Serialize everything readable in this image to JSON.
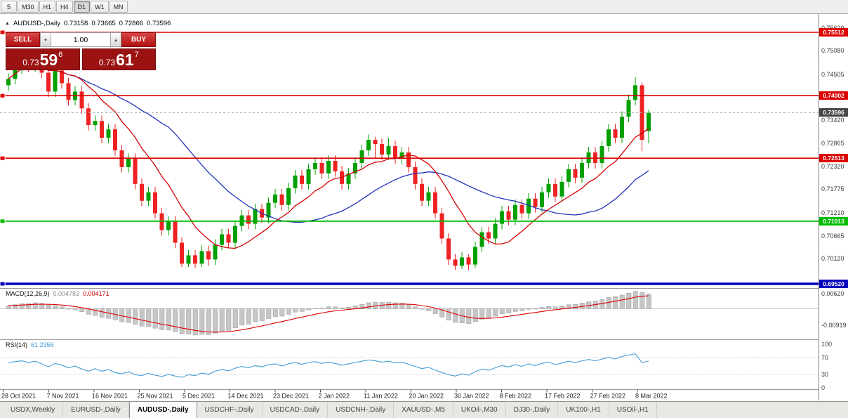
{
  "colors": {
    "up": "#00a000",
    "down": "#ee2222",
    "ma_fast": "#d40000",
    "ma_slow": "#2233bb",
    "macd_bar": "#c6c6c6",
    "macd_bar_edge": "#9a9a9a",
    "macd_signal": "#dd0000",
    "rsi_line": "#3f9cd8",
    "badge_current": "#454545",
    "bid_line": "#aaaaaa"
  },
  "toolbar": {
    "timeframes": [
      {
        "label": "5",
        "active": false
      },
      {
        "label": "M30",
        "active": false
      },
      {
        "label": "H1",
        "active": false
      },
      {
        "label": "H4",
        "active": false
      },
      {
        "label": "D1",
        "active": true
      },
      {
        "label": "W1",
        "active": false
      },
      {
        "label": "MN",
        "active": false
      }
    ]
  },
  "chart_header": {
    "collapse_icon": "▲",
    "symbol": "AUDUSD-,Daily",
    "open": "0.73158",
    "high": "0.73665",
    "low": "0.72866",
    "close": "0.73596"
  },
  "trade_panel": {
    "sell_label": "SELL",
    "buy_label": "BUY",
    "volume": "1.00",
    "volume_down_icon": "▾",
    "volume_up_icon": "▴",
    "sell_price": {
      "base": "0.73",
      "big": "59",
      "sup": "6"
    },
    "buy_price": {
      "base": "0.73",
      "big": "61",
      "sup": "7"
    }
  },
  "levels": [
    {
      "value": 0.75512,
      "label": "0.75512",
      "color": "#dd0000",
      "width": 1.6
    },
    {
      "value": 0.74002,
      "label": "0.74002",
      "color": "#dd0000",
      "width": 1.6
    },
    {
      "value": 0.72513,
      "label": "0.72513",
      "color": "#dd0000",
      "width": 1.6
    },
    {
      "value": 0.71013,
      "label": "0.71013",
      "color": "#00bb00",
      "width": 1.8
    },
    {
      "value": 0.6952,
      "label": "0.69520",
      "color": "#0000bb",
      "width": 3.5
    }
  ],
  "current_price": {
    "value": 0.73596,
    "label": "0.73596"
  },
  "price_axis_ticks": [
    0.7562,
    0.7508,
    0.74505,
    0.7342,
    0.72865,
    0.7232,
    0.71775,
    0.7121,
    0.70665,
    0.7012
  ],
  "macd_panel": {
    "name": "MACD(12,26,9)",
    "value1": "0.004783",
    "value2": "0.004171",
    "axis_max": "0.00620",
    "axis_min": "-0.00919"
  },
  "rsi_panel": {
    "name": "RSI(14)",
    "value": "61.2356",
    "levels": [
      100,
      70,
      30,
      0
    ]
  },
  "date_axis": [
    "28 Oct 2021",
    "7 Nov 2021",
    "16 Nov 2021",
    "25 Nov 2021",
    "5 Dec 2021",
    "14 Dec 2021",
    "23 Dec 2021",
    "2 Jan 2022",
    "11 Jan 2022",
    "20 Jan 2022",
    "30 Jan 2022",
    "8 Feb 2022",
    "17 Feb 2022",
    "27 Feb 2022",
    "8 Mar 2022"
  ],
  "tabs": [
    {
      "label": "USDX,Weekly",
      "active": false
    },
    {
      "label": "EURUSD-,Daily",
      "active": false
    },
    {
      "label": "AUDUSD-,Daily",
      "active": true
    },
    {
      "label": "USDCHF-,Daily",
      "active": false
    },
    {
      "label": "USDCAD-,Daily",
      "active": false
    },
    {
      "label": "USDCNH-,Daily",
      "active": false
    },
    {
      "label": "XAUUSD-,M5",
      "active": false
    },
    {
      "label": "UKOil-,M30",
      "active": false
    },
    {
      "label": "DJ30-,Daily",
      "active": false
    },
    {
      "label": "UK100-,H1",
      "active": false
    },
    {
      "label": "USOil-,H1",
      "active": false
    }
  ],
  "chart_data": {
    "type": "candlestick",
    "symbol": "AUDUSD",
    "timeframe": "Daily",
    "candles": [
      [
        0.7425,
        0.7453,
        0.7412,
        0.744
      ],
      [
        0.744,
        0.7478,
        0.7427,
        0.7465
      ],
      [
        0.7465,
        0.7505,
        0.7452,
        0.7488
      ],
      [
        0.7488,
        0.7501,
        0.7457,
        0.747
      ],
      [
        0.747,
        0.7512,
        0.7457,
        0.7495
      ],
      [
        0.7495,
        0.7508,
        0.7442,
        0.7455
      ],
      [
        0.7455,
        0.7468,
        0.7397,
        0.741
      ],
      [
        0.741,
        0.7473,
        0.7397,
        0.746
      ],
      [
        0.746,
        0.7473,
        0.7417,
        0.743
      ],
      [
        0.743,
        0.7443,
        0.7377,
        0.739
      ],
      [
        0.739,
        0.7423,
        0.7377,
        0.741
      ],
      [
        0.741,
        0.7423,
        0.7357,
        0.737
      ],
      [
        0.737,
        0.7383,
        0.7317,
        0.733
      ],
      [
        0.733,
        0.7353,
        0.7317,
        0.734
      ],
      [
        0.734,
        0.7353,
        0.7287,
        0.73
      ],
      [
        0.73,
        0.7333,
        0.7287,
        0.732
      ],
      [
        0.732,
        0.7333,
        0.7257,
        0.727
      ],
      [
        0.727,
        0.7283,
        0.7217,
        0.723
      ],
      [
        0.723,
        0.7263,
        0.7217,
        0.725
      ],
      [
        0.725,
        0.7263,
        0.7177,
        0.719
      ],
      [
        0.719,
        0.7203,
        0.7137,
        0.715
      ],
      [
        0.715,
        0.7183,
        0.7137,
        0.717
      ],
      [
        0.717,
        0.7183,
        0.7107,
        0.712
      ],
      [
        0.712,
        0.7133,
        0.7067,
        0.708
      ],
      [
        0.708,
        0.7113,
        0.7067,
        0.71
      ],
      [
        0.71,
        0.7113,
        0.7037,
        0.705
      ],
      [
        0.705,
        0.7063,
        0.6992,
        0.7
      ],
      [
        0.7,
        0.7033,
        0.6992,
        0.702
      ],
      [
        0.702,
        0.7033,
        0.699,
        0.7
      ],
      [
        0.7,
        0.7043,
        0.6992,
        0.703
      ],
      [
        0.703,
        0.7043,
        0.6995,
        0.701
      ],
      [
        0.701,
        0.7058,
        0.6997,
        0.7045
      ],
      [
        0.7045,
        0.7083,
        0.7032,
        0.707
      ],
      [
        0.707,
        0.7083,
        0.7037,
        0.705
      ],
      [
        0.705,
        0.7103,
        0.7037,
        0.709
      ],
      [
        0.709,
        0.7128,
        0.7077,
        0.7115
      ],
      [
        0.7115,
        0.7128,
        0.7082,
        0.7095
      ],
      [
        0.7095,
        0.7143,
        0.7082,
        0.713
      ],
      [
        0.713,
        0.7143,
        0.7097,
        0.711
      ],
      [
        0.711,
        0.7158,
        0.7097,
        0.7145
      ],
      [
        0.7145,
        0.7178,
        0.7132,
        0.7165
      ],
      [
        0.7165,
        0.7178,
        0.7127,
        0.714
      ],
      [
        0.714,
        0.7193,
        0.7127,
        0.718
      ],
      [
        0.718,
        0.7223,
        0.7167,
        0.721
      ],
      [
        0.721,
        0.7223,
        0.7177,
        0.719
      ],
      [
        0.719,
        0.7238,
        0.7177,
        0.7225
      ],
      [
        0.7225,
        0.7253,
        0.7212,
        0.724
      ],
      [
        0.724,
        0.7253,
        0.7202,
        0.7215
      ],
      [
        0.7215,
        0.7258,
        0.7202,
        0.7245
      ],
      [
        0.7245,
        0.7258,
        0.7207,
        0.722
      ],
      [
        0.722,
        0.7233,
        0.7177,
        0.719
      ],
      [
        0.719,
        0.7228,
        0.7177,
        0.7215
      ],
      [
        0.7215,
        0.7253,
        0.7202,
        0.724
      ],
      [
        0.724,
        0.7283,
        0.7227,
        0.727
      ],
      [
        0.727,
        0.7308,
        0.7257,
        0.7295
      ],
      [
        0.7295,
        0.7302,
        0.725,
        0.7285
      ],
      [
        0.7285,
        0.7298,
        0.7247,
        0.726
      ],
      [
        0.726,
        0.73,
        0.7247,
        0.728
      ],
      [
        0.728,
        0.7293,
        0.7237,
        0.725
      ],
      [
        0.725,
        0.7278,
        0.7237,
        0.7265
      ],
      [
        0.7265,
        0.7278,
        0.7217,
        0.723
      ],
      [
        0.723,
        0.7243,
        0.7177,
        0.719
      ],
      [
        0.719,
        0.7203,
        0.7137,
        0.715
      ],
      [
        0.715,
        0.7183,
        0.7137,
        0.717
      ],
      [
        0.717,
        0.7183,
        0.7107,
        0.712
      ],
      [
        0.712,
        0.7133,
        0.7047,
        0.706
      ],
      [
        0.706,
        0.7073,
        0.6997,
        0.701
      ],
      [
        0.701,
        0.7023,
        0.6985,
        0.6995
      ],
      [
        0.6995,
        0.7028,
        0.6988,
        0.7015
      ],
      [
        0.7015,
        0.7022,
        0.6985,
        0.6998
      ],
      [
        0.6998,
        0.7053,
        0.699,
        0.704
      ],
      [
        0.704,
        0.7088,
        0.7027,
        0.7075
      ],
      [
        0.7075,
        0.7088,
        0.7047,
        0.706
      ],
      [
        0.706,
        0.7108,
        0.7047,
        0.7095
      ],
      [
        0.7095,
        0.7138,
        0.7082,
        0.7125
      ],
      [
        0.7125,
        0.7138,
        0.7092,
        0.7105
      ],
      [
        0.7105,
        0.7153,
        0.7092,
        0.714
      ],
      [
        0.714,
        0.7153,
        0.7107,
        0.712
      ],
      [
        0.712,
        0.7168,
        0.7107,
        0.7155
      ],
      [
        0.7155,
        0.7168,
        0.7122,
        0.7135
      ],
      [
        0.7135,
        0.7183,
        0.7122,
        0.717
      ],
      [
        0.717,
        0.7203,
        0.7157,
        0.719
      ],
      [
        0.719,
        0.7203,
        0.7147,
        0.716
      ],
      [
        0.716,
        0.7208,
        0.7147,
        0.7195
      ],
      [
        0.7195,
        0.7238,
        0.7182,
        0.7225
      ],
      [
        0.7225,
        0.7238,
        0.7192,
        0.7205
      ],
      [
        0.7205,
        0.7253,
        0.7192,
        0.724
      ],
      [
        0.724,
        0.7278,
        0.7227,
        0.7265
      ],
      [
        0.7265,
        0.7278,
        0.7227,
        0.724
      ],
      [
        0.724,
        0.7293,
        0.7227,
        0.728
      ],
      [
        0.728,
        0.7333,
        0.7267,
        0.732
      ],
      [
        0.732,
        0.7333,
        0.7287,
        0.73
      ],
      [
        0.73,
        0.7363,
        0.7287,
        0.735
      ],
      [
        0.735,
        0.7403,
        0.7337,
        0.739
      ],
      [
        0.739,
        0.7445,
        0.7377,
        0.7425
      ],
      [
        0.7425,
        0.7432,
        0.7268,
        0.7295
      ],
      [
        0.73158,
        0.73665,
        0.72866,
        0.73596
      ]
    ],
    "macd": [
      0.001,
      0.0013,
      0.0016,
      0.0017,
      0.0019,
      0.0017,
      0.0012,
      0.001,
      0.0006,
      0.0,
      -0.0004,
      -0.001,
      -0.0018,
      -0.0022,
      -0.0028,
      -0.0031,
      -0.0036,
      -0.0042,
      -0.0045,
      -0.005,
      -0.0056,
      -0.0058,
      -0.0063,
      -0.0068,
      -0.0069,
      -0.0074,
      -0.008,
      -0.0082,
      -0.0085,
      -0.0083,
      -0.0084,
      -0.0079,
      -0.0072,
      -0.007,
      -0.0062,
      -0.0053,
      -0.005,
      -0.0042,
      -0.0039,
      -0.0032,
      -0.0026,
      -0.0024,
      -0.0018,
      -0.0011,
      -0.0009,
      -0.0004,
      0.0001,
      0.0002,
      0.0006,
      0.0006,
      0.0003,
      0.0005,
      0.0009,
      0.0014,
      0.0019,
      0.0021,
      0.002,
      0.0021,
      0.0019,
      0.0018,
      0.0013,
      0.0006,
      -0.0002,
      -0.0007,
      -0.0016,
      -0.0027,
      -0.0037,
      -0.0044,
      -0.0046,
      -0.0048,
      -0.0042,
      -0.0034,
      -0.003,
      -0.0024,
      -0.0017,
      -0.0014,
      -0.0009,
      -0.0007,
      -0.0002,
      0.0,
      0.0004,
      0.0007,
      0.0006,
      0.0009,
      0.0013,
      0.0014,
      0.0018,
      0.0022,
      0.0025,
      0.003,
      0.0036,
      0.0039,
      0.0044,
      0.005,
      0.0056,
      0.0052,
      0.004783
    ],
    "rsi": [
      58,
      60,
      62,
      58,
      61,
      55,
      48,
      56,
      52,
      46,
      50,
      43,
      38,
      44,
      38,
      42,
      35,
      32,
      37,
      30,
      28,
      33,
      29,
      26,
      31,
      27,
      24,
      30,
      28,
      34,
      31,
      38,
      42,
      39,
      45,
      49,
      46,
      51,
      48,
      53,
      55,
      50,
      55,
      58,
      54,
      58,
      60,
      56,
      59,
      56,
      52,
      55,
      58,
      61,
      64,
      62,
      59,
      61,
      57,
      59,
      54,
      49,
      44,
      47,
      41,
      35,
      30,
      27,
      32,
      29,
      37,
      43,
      40,
      46,
      51,
      48,
      53,
      49,
      55,
      51,
      56,
      59,
      53,
      57,
      61,
      58,
      62,
      65,
      62,
      66,
      70,
      66,
      72,
      75,
      78,
      58,
      61.24
    ]
  }
}
